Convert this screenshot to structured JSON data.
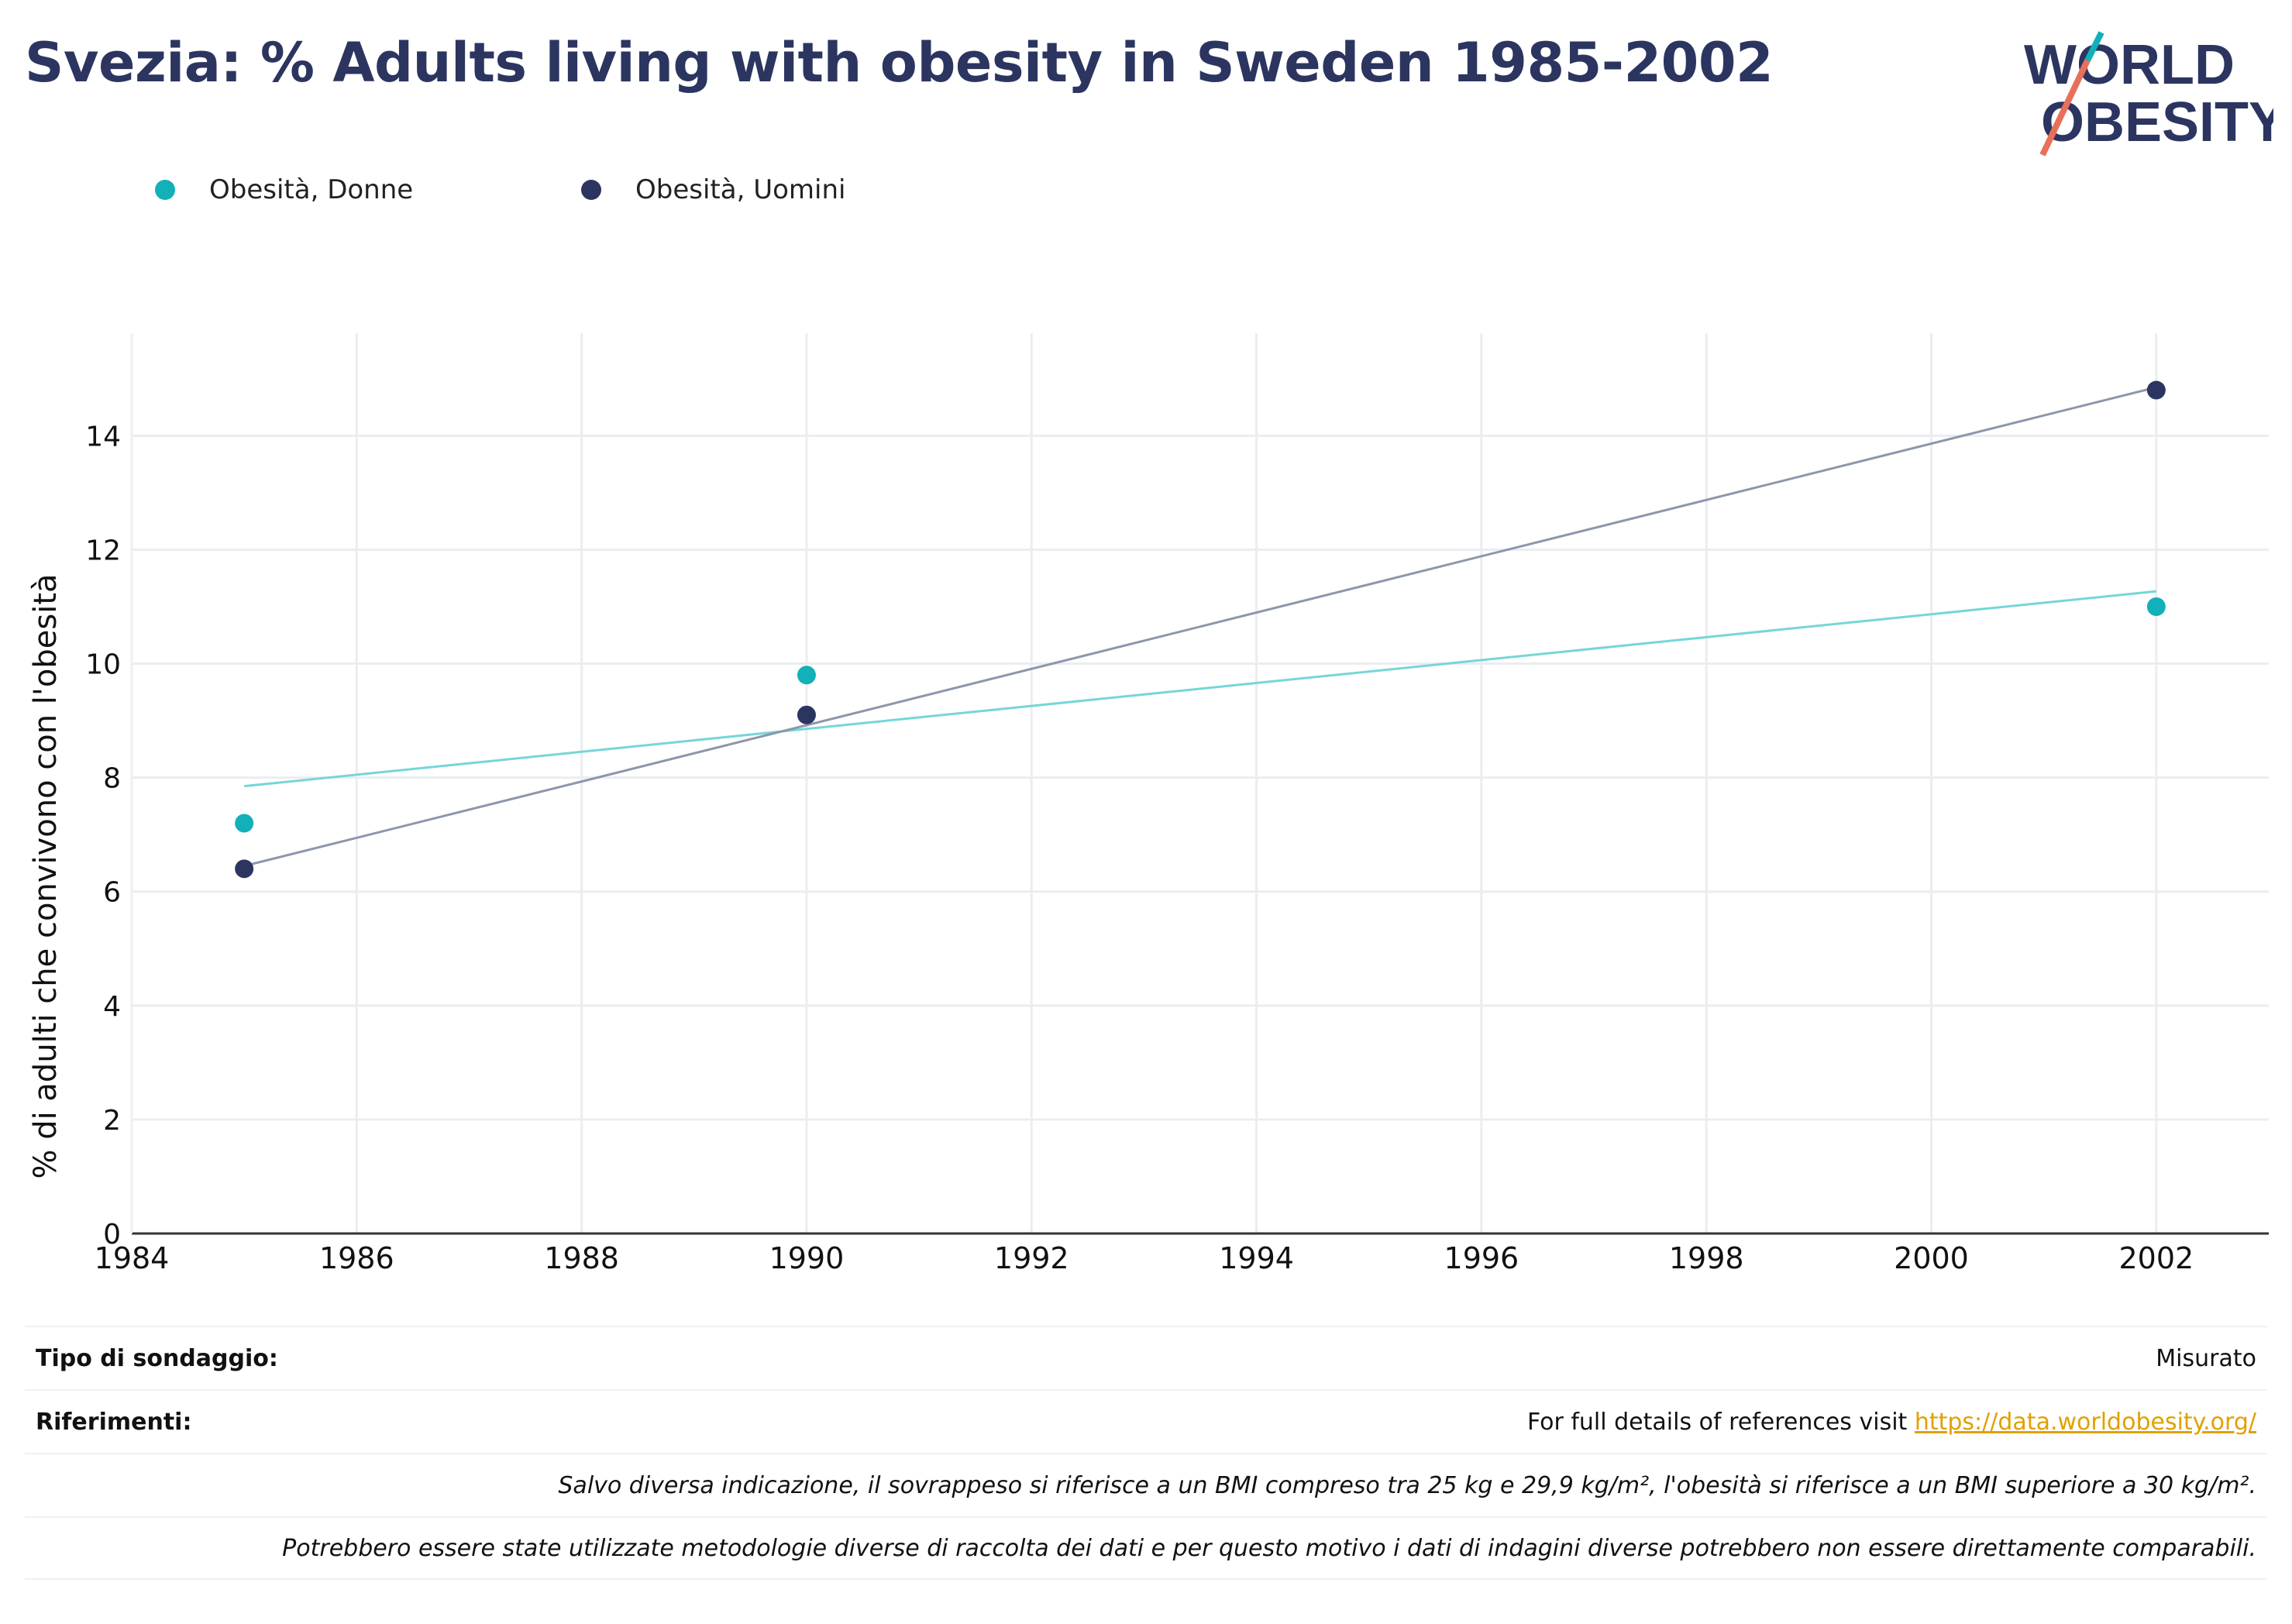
{
  "title": "Svezia: % Adults living with obesity in Sweden 1985-2002",
  "logo": {
    "line1": "WORLD",
    "line2": "OBESITY"
  },
  "colors": {
    "women": "#12b0b8",
    "men": "#2b3560",
    "women_trend": "#76d6d8",
    "men_trend": "#8e96ac",
    "grid": "#ebedf0",
    "axis": "#333333",
    "link": "#e0a100"
  },
  "legend": [
    {
      "label": "Obesità, Donne",
      "color": "#12b0b8"
    },
    {
      "label": "Obesità, Uomini",
      "color": "#2b3560"
    }
  ],
  "chart_data": {
    "type": "scatter",
    "ylabel": "% di adulti che convivono con l'obesità",
    "xlim": [
      1984,
      2003
    ],
    "ylim": [
      0,
      15.8
    ],
    "xticks": [
      1984,
      1986,
      1988,
      1990,
      1992,
      1994,
      1996,
      1998,
      2000,
      2002
    ],
    "yticks": [
      0,
      2,
      4,
      6,
      8,
      10,
      12,
      14
    ],
    "grid": true,
    "legend_position": "top-left",
    "series": [
      {
        "name": "Obesità, Donne",
        "x": [
          1985,
          1990,
          2002
        ],
        "y": [
          7.2,
          9.8,
          11.0
        ],
        "trendline": {
          "x": [
            1985,
            2002
          ],
          "y": [
            7.85,
            11.27
          ]
        }
      },
      {
        "name": "Obesità, Uomini",
        "x": [
          1985,
          1990,
          2002
        ],
        "y": [
          6.4,
          9.1,
          14.8
        ],
        "trendline": {
          "x": [
            1985,
            2002
          ],
          "y": [
            6.45,
            14.85
          ]
        }
      }
    ]
  },
  "footer": {
    "survey_label": "Tipo di sondaggio:",
    "survey_value": "Misurato",
    "refs_label": "Riferimenti:",
    "refs_text": "For full details of references visit ",
    "refs_link": "https://data.worldobesity.org/",
    "note1": "Salvo diversa indicazione, il sovrappeso si riferisce a un BMI compreso tra 25 kg e 29,9 kg/m², l'obesità si riferisce a un BMI superiore a 30 kg/m².",
    "note2": "Potrebbero essere state utilizzate metodologie diverse di raccolta dei dati e per questo motivo i dati di indagini diverse potrebbero non essere direttamente comparabili."
  }
}
